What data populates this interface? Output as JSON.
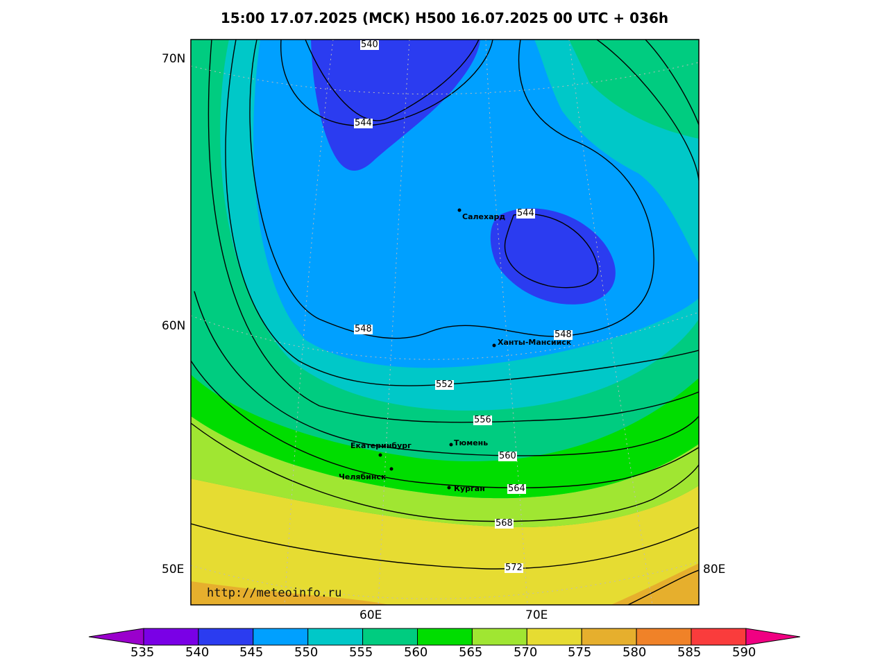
{
  "title": "15:00 17.07.2025 (МСК) H500  16.07.2025 00 UTC + 036h",
  "watermark": "http://meteoinfo.ru",
  "lat_labels": [
    "70N",
    "60N",
    "50E"
  ],
  "lon_labels": [
    "60E",
    "70E",
    "80E"
  ],
  "cities": [
    "Салехард",
    "Ханты-Мансийск",
    "Екатеринбург",
    "Тюмень",
    "Челябинск",
    "Курган"
  ],
  "contour_labels": [
    "540",
    "544",
    "544",
    "548",
    "548",
    "552",
    "556",
    "560",
    "564",
    "568",
    "572"
  ],
  "colorbar": {
    "labels": [
      "535",
      "540",
      "545",
      "550",
      "555",
      "560",
      "565",
      "570",
      "575",
      "580",
      "585",
      "590"
    ],
    "colors": [
      "#9a00cc",
      "#7a00e6",
      "#2b3cf0",
      "#00a0ff",
      "#00c8c8",
      "#00cc80",
      "#00dd00",
      "#a0e632",
      "#e6dc32",
      "#e6af2d",
      "#f08228",
      "#fa3c3c",
      "#f00082"
    ]
  }
}
